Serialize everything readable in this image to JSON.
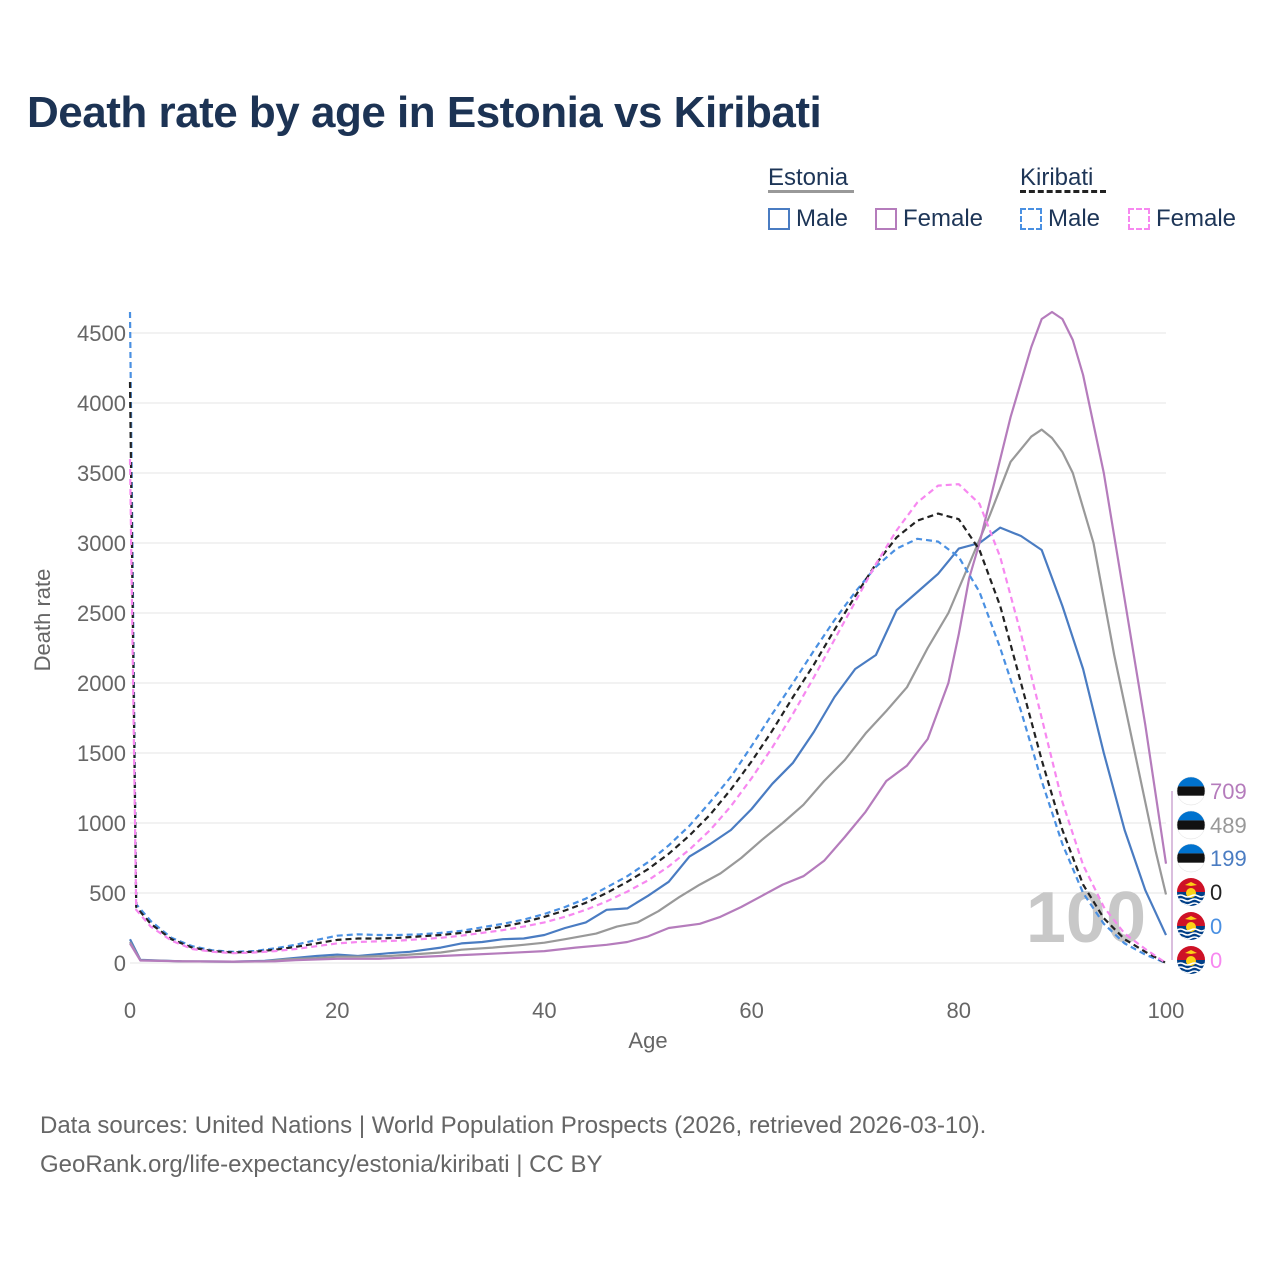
{
  "title": "Death rate by age in Estonia vs Kiribati",
  "legend": {
    "groups": [
      {
        "name": "Estonia",
        "underline_style": "solid",
        "underline_color": "#999999",
        "items": [
          {
            "label": "Male",
            "color": "#4a7cc2",
            "style": "solid"
          },
          {
            "label": "Female",
            "color": "#b57cbc",
            "style": "solid"
          }
        ]
      },
      {
        "name": "Kiribati",
        "underline_style": "dashed",
        "underline_color": "#222222",
        "items": [
          {
            "label": "Male",
            "color": "#4a90e2",
            "style": "dashed"
          },
          {
            "label": "Female",
            "color": "#f788f0",
            "style": "dashed"
          }
        ]
      }
    ]
  },
  "chart_data": {
    "type": "line",
    "xlabel": "Age",
    "ylabel": "Death rate",
    "xlim": [
      0,
      100
    ],
    "ylim": [
      -50,
      4700
    ],
    "xticks": [
      0,
      20,
      40,
      60,
      80,
      100
    ],
    "yticks": [
      0,
      500,
      1000,
      1500,
      2000,
      2500,
      3000,
      3500,
      4000,
      4500
    ],
    "grid": true,
    "watermark": "100",
    "series": [
      {
        "name": "Estonia Male",
        "country": "Estonia",
        "color": "#4a7cc2",
        "dash": false,
        "points": [
          [
            0,
            170
          ],
          [
            1,
            22
          ],
          [
            5,
            12
          ],
          [
            10,
            10
          ],
          [
            13,
            15
          ],
          [
            15,
            30
          ],
          [
            18,
            50
          ],
          [
            20,
            60
          ],
          [
            22,
            50
          ],
          [
            25,
            70
          ],
          [
            27,
            80
          ],
          [
            30,
            110
          ],
          [
            32,
            140
          ],
          [
            34,
            150
          ],
          [
            36,
            170
          ],
          [
            38,
            175
          ],
          [
            40,
            200
          ],
          [
            42,
            250
          ],
          [
            44,
            290
          ],
          [
            46,
            380
          ],
          [
            48,
            390
          ],
          [
            50,
            480
          ],
          [
            52,
            580
          ],
          [
            54,
            760
          ],
          [
            56,
            850
          ],
          [
            58,
            950
          ],
          [
            60,
            1100
          ],
          [
            62,
            1280
          ],
          [
            64,
            1430
          ],
          [
            66,
            1650
          ],
          [
            68,
            1900
          ],
          [
            70,
            2100
          ],
          [
            72,
            2200
          ],
          [
            74,
            2520
          ],
          [
            76,
            2650
          ],
          [
            78,
            2780
          ],
          [
            80,
            2960
          ],
          [
            82,
            3000
          ],
          [
            84,
            3110
          ],
          [
            86,
            3050
          ],
          [
            88,
            2950
          ],
          [
            90,
            2550
          ],
          [
            92,
            2100
          ],
          [
            94,
            1500
          ],
          [
            96,
            950
          ],
          [
            98,
            520
          ],
          [
            100,
            199
          ]
        ],
        "end_value": "199"
      },
      {
        "name": "Estonia Total",
        "country": "Estonia",
        "color": "#999999",
        "dash": false,
        "points": [
          [
            0,
            150
          ],
          [
            1,
            20
          ],
          [
            5,
            12
          ],
          [
            10,
            10
          ],
          [
            13,
            12
          ],
          [
            15,
            25
          ],
          [
            18,
            35
          ],
          [
            20,
            45
          ],
          [
            22,
            45
          ],
          [
            25,
            50
          ],
          [
            27,
            60
          ],
          [
            30,
            75
          ],
          [
            32,
            95
          ],
          [
            35,
            110
          ],
          [
            38,
            130
          ],
          [
            40,
            145
          ],
          [
            42,
            170
          ],
          [
            45,
            210
          ],
          [
            47,
            260
          ],
          [
            49,
            290
          ],
          [
            51,
            370
          ],
          [
            53,
            470
          ],
          [
            55,
            560
          ],
          [
            57,
            640
          ],
          [
            59,
            750
          ],
          [
            61,
            880
          ],
          [
            63,
            1000
          ],
          [
            65,
            1130
          ],
          [
            67,
            1300
          ],
          [
            69,
            1450
          ],
          [
            71,
            1640
          ],
          [
            73,
            1800
          ],
          [
            75,
            1970
          ],
          [
            77,
            2250
          ],
          [
            79,
            2500
          ],
          [
            81,
            2850
          ],
          [
            83,
            3200
          ],
          [
            85,
            3580
          ],
          [
            87,
            3760
          ],
          [
            88,
            3810
          ],
          [
            89,
            3750
          ],
          [
            90,
            3650
          ],
          [
            91,
            3500
          ],
          [
            93,
            3000
          ],
          [
            95,
            2200
          ],
          [
            97,
            1500
          ],
          [
            99,
            800
          ],
          [
            100,
            489
          ]
        ],
        "end_value": "489"
      },
      {
        "name": "Estonia Female",
        "country": "Estonia",
        "color": "#b57cbc",
        "dash": false,
        "points": [
          [
            0,
            140
          ],
          [
            1,
            18
          ],
          [
            5,
            12
          ],
          [
            10,
            10
          ],
          [
            14,
            12
          ],
          [
            16,
            20
          ],
          [
            20,
            30
          ],
          [
            24,
            30
          ],
          [
            27,
            40
          ],
          [
            30,
            50
          ],
          [
            33,
            60
          ],
          [
            36,
            70
          ],
          [
            40,
            85
          ],
          [
            43,
            110
          ],
          [
            46,
            130
          ],
          [
            48,
            150
          ],
          [
            50,
            190
          ],
          [
            52,
            250
          ],
          [
            55,
            280
          ],
          [
            57,
            330
          ],
          [
            59,
            400
          ],
          [
            61,
            480
          ],
          [
            63,
            560
          ],
          [
            65,
            620
          ],
          [
            67,
            730
          ],
          [
            69,
            900
          ],
          [
            71,
            1080
          ],
          [
            73,
            1300
          ],
          [
            75,
            1410
          ],
          [
            77,
            1600
          ],
          [
            79,
            2000
          ],
          [
            80,
            2350
          ],
          [
            81,
            2750
          ],
          [
            82,
            3000
          ],
          [
            83,
            3300
          ],
          [
            85,
            3900
          ],
          [
            87,
            4400
          ],
          [
            88,
            4600
          ],
          [
            89,
            4650
          ],
          [
            90,
            4600
          ],
          [
            91,
            4450
          ],
          [
            92,
            4200
          ],
          [
            94,
            3500
          ],
          [
            96,
            2600
          ],
          [
            98,
            1700
          ],
          [
            100,
            709
          ]
        ],
        "end_value": "709"
      },
      {
        "name": "Kiribati Male",
        "country": "Kiribati",
        "color": "#4a90e2",
        "dash": true,
        "points": [
          [
            0,
            4650
          ],
          [
            0.6,
            420
          ],
          [
            2,
            300
          ],
          [
            4,
            180
          ],
          [
            6,
            120
          ],
          [
            8,
            90
          ],
          [
            10,
            80
          ],
          [
            12,
            85
          ],
          [
            14,
            105
          ],
          [
            16,
            130
          ],
          [
            18,
            165
          ],
          [
            20,
            195
          ],
          [
            22,
            205
          ],
          [
            24,
            200
          ],
          [
            26,
            200
          ],
          [
            28,
            205
          ],
          [
            30,
            215
          ],
          [
            32,
            230
          ],
          [
            34,
            255
          ],
          [
            36,
            280
          ],
          [
            38,
            310
          ],
          [
            40,
            350
          ],
          [
            42,
            400
          ],
          [
            44,
            460
          ],
          [
            46,
            540
          ],
          [
            48,
            620
          ],
          [
            50,
            720
          ],
          [
            52,
            840
          ],
          [
            54,
            980
          ],
          [
            56,
            1150
          ],
          [
            58,
            1330
          ],
          [
            60,
            1550
          ],
          [
            62,
            1780
          ],
          [
            64,
            2000
          ],
          [
            66,
            2230
          ],
          [
            68,
            2450
          ],
          [
            70,
            2650
          ],
          [
            72,
            2830
          ],
          [
            74,
            2960
          ],
          [
            76,
            3030
          ],
          [
            78,
            3010
          ],
          [
            80,
            2900
          ],
          [
            82,
            2650
          ],
          [
            84,
            2250
          ],
          [
            86,
            1800
          ],
          [
            88,
            1300
          ],
          [
            90,
            850
          ],
          [
            92,
            500
          ],
          [
            94,
            280
          ],
          [
            96,
            140
          ],
          [
            98,
            60
          ],
          [
            100,
            0
          ]
        ],
        "end_value": "0"
      },
      {
        "name": "Kiribati Total",
        "country": "Kiribati",
        "color": "#222222",
        "dash": true,
        "points": [
          [
            0,
            4150
          ],
          [
            0.6,
            400
          ],
          [
            2,
            280
          ],
          [
            4,
            170
          ],
          [
            6,
            110
          ],
          [
            8,
            85
          ],
          [
            10,
            75
          ],
          [
            12,
            80
          ],
          [
            14,
            95
          ],
          [
            16,
            115
          ],
          [
            18,
            140
          ],
          [
            20,
            165
          ],
          [
            22,
            175
          ],
          [
            24,
            175
          ],
          [
            26,
            180
          ],
          [
            28,
            190
          ],
          [
            30,
            200
          ],
          [
            32,
            215
          ],
          [
            34,
            235
          ],
          [
            36,
            260
          ],
          [
            38,
            290
          ],
          [
            40,
            330
          ],
          [
            42,
            375
          ],
          [
            44,
            430
          ],
          [
            46,
            500
          ],
          [
            48,
            580
          ],
          [
            50,
            670
          ],
          [
            52,
            780
          ],
          [
            54,
            910
          ],
          [
            56,
            1060
          ],
          [
            58,
            1240
          ],
          [
            60,
            1440
          ],
          [
            62,
            1660
          ],
          [
            64,
            1900
          ],
          [
            66,
            2130
          ],
          [
            68,
            2380
          ],
          [
            70,
            2620
          ],
          [
            72,
            2850
          ],
          [
            74,
            3040
          ],
          [
            76,
            3160
          ],
          [
            78,
            3210
          ],
          [
            80,
            3170
          ],
          [
            82,
            2950
          ],
          [
            84,
            2550
          ],
          [
            86,
            2000
          ],
          [
            88,
            1450
          ],
          [
            90,
            950
          ],
          [
            92,
            560
          ],
          [
            94,
            320
          ],
          [
            96,
            170
          ],
          [
            98,
            80
          ],
          [
            100,
            0
          ]
        ],
        "end_value": "0"
      },
      {
        "name": "Kiribati Female",
        "country": "Kiribati",
        "color": "#f788f0",
        "dash": true,
        "points": [
          [
            0,
            3600
          ],
          [
            0.6,
            380
          ],
          [
            2,
            260
          ],
          [
            4,
            160
          ],
          [
            6,
            100
          ],
          [
            8,
            80
          ],
          [
            10,
            70
          ],
          [
            12,
            75
          ],
          [
            14,
            85
          ],
          [
            16,
            100
          ],
          [
            18,
            120
          ],
          [
            20,
            140
          ],
          [
            22,
            150
          ],
          [
            24,
            155
          ],
          [
            26,
            160
          ],
          [
            28,
            170
          ],
          [
            30,
            180
          ],
          [
            32,
            195
          ],
          [
            34,
            215
          ],
          [
            36,
            235
          ],
          [
            38,
            260
          ],
          [
            40,
            290
          ],
          [
            42,
            330
          ],
          [
            44,
            380
          ],
          [
            46,
            440
          ],
          [
            48,
            510
          ],
          [
            50,
            590
          ],
          [
            52,
            690
          ],
          [
            54,
            810
          ],
          [
            56,
            950
          ],
          [
            58,
            1120
          ],
          [
            60,
            1320
          ],
          [
            62,
            1540
          ],
          [
            64,
            1780
          ],
          [
            66,
            2040
          ],
          [
            68,
            2310
          ],
          [
            70,
            2580
          ],
          [
            72,
            2850
          ],
          [
            74,
            3090
          ],
          [
            76,
            3290
          ],
          [
            78,
            3410
          ],
          [
            80,
            3420
          ],
          [
            82,
            3280
          ],
          [
            84,
            2900
          ],
          [
            86,
            2350
          ],
          [
            88,
            1750
          ],
          [
            90,
            1150
          ],
          [
            92,
            700
          ],
          [
            94,
            400
          ],
          [
            96,
            210
          ],
          [
            98,
            100
          ],
          [
            100,
            0
          ]
        ],
        "end_value": "0"
      }
    ]
  },
  "footer": {
    "line1": "Data sources: United Nations | World Population Prospects (2026, retrieved 2026-03-10).",
    "line2": "GeoRank.org/life-expectancy/estonia/kiribati | CC BY"
  }
}
